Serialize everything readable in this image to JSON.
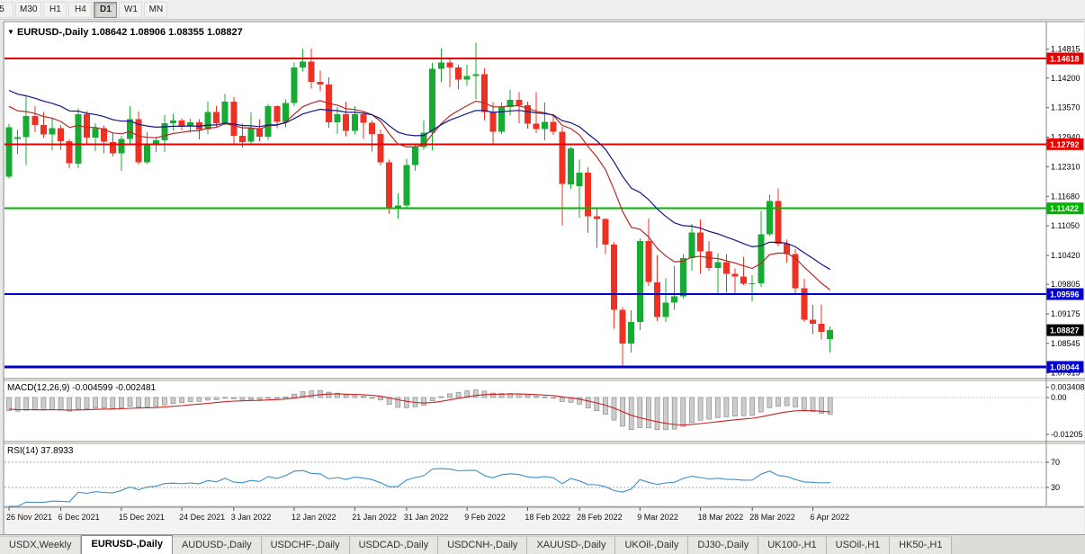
{
  "toolbar": {
    "timeframes": [
      {
        "label": "5",
        "active": false
      },
      {
        "label": "M30",
        "active": false
      },
      {
        "label": "H1",
        "active": false
      },
      {
        "label": "H4",
        "active": false
      },
      {
        "label": "D1",
        "active": true
      },
      {
        "label": "W1",
        "active": false
      },
      {
        "label": "MN",
        "active": false
      }
    ]
  },
  "chart_header": {
    "symbol": "EURUSD-,Daily",
    "ohlc": "1.08642 1.08906 1.08355 1.08827"
  },
  "chart_data": {
    "type": "candlestick",
    "symbol": "EURUSD-",
    "timeframe": "Daily",
    "visible_price_range": {
      "top": 1.154,
      "bottom": 1.0781
    },
    "candles": [
      [
        1.121,
        1.1323,
        1.1206,
        1.1315
      ],
      [
        1.129,
        1.131,
        1.1258,
        1.1294
      ],
      [
        1.1294,
        1.1383,
        1.1235,
        1.1339
      ],
      [
        1.1339,
        1.136,
        1.1305,
        1.132
      ],
      [
        1.132,
        1.1348,
        1.1293,
        1.13
      ],
      [
        1.13,
        1.1334,
        1.1266,
        1.1313
      ],
      [
        1.1313,
        1.132,
        1.1267,
        1.1285
      ],
      [
        1.1285,
        1.129,
        1.1228,
        1.1238
      ],
      [
        1.1238,
        1.1355,
        1.1228,
        1.1343
      ],
      [
        1.1343,
        1.135,
        1.128,
        1.1293
      ],
      [
        1.1293,
        1.1324,
        1.1264,
        1.1313
      ],
      [
        1.1313,
        1.1319,
        1.126,
        1.1284
      ],
      [
        1.1284,
        1.1303,
        1.1253,
        1.126
      ],
      [
        1.126,
        1.1297,
        1.1222,
        1.129
      ],
      [
        1.129,
        1.136,
        1.128,
        1.1332
      ],
      [
        1.1332,
        1.1349,
        1.1236,
        1.124
      ],
      [
        1.124,
        1.1305,
        1.1237,
        1.1278
      ],
      [
        1.1278,
        1.1295,
        1.1262,
        1.1287
      ],
      [
        1.1287,
        1.1342,
        1.1262,
        1.1324
      ],
      [
        1.1324,
        1.1344,
        1.1308,
        1.133
      ],
      [
        1.133,
        1.1334,
        1.1308,
        1.1318
      ],
      [
        1.1318,
        1.1333,
        1.1304,
        1.1326
      ],
      [
        1.1326,
        1.1332,
        1.1289,
        1.131
      ],
      [
        1.131,
        1.137,
        1.13,
        1.1348
      ],
      [
        1.1348,
        1.136,
        1.1315,
        1.1324
      ],
      [
        1.1324,
        1.1386,
        1.132,
        1.137
      ],
      [
        1.137,
        1.1379,
        1.1279,
        1.1297
      ],
      [
        1.1297,
        1.1323,
        1.1272,
        1.1284
      ],
      [
        1.1284,
        1.1347,
        1.128,
        1.1313
      ],
      [
        1.1313,
        1.1332,
        1.1285,
        1.1295
      ],
      [
        1.1295,
        1.1365,
        1.1288,
        1.136
      ],
      [
        1.136,
        1.1362,
        1.1313,
        1.1327
      ],
      [
        1.1327,
        1.1375,
        1.1315,
        1.1367
      ],
      [
        1.1367,
        1.1453,
        1.136,
        1.1443
      ],
      [
        1.1443,
        1.1482,
        1.1434,
        1.1455
      ],
      [
        1.1455,
        1.1483,
        1.1398,
        1.1412
      ],
      [
        1.1412,
        1.1436,
        1.1392,
        1.1406
      ],
      [
        1.1406,
        1.1422,
        1.1314,
        1.1326
      ],
      [
        1.1326,
        1.1358,
        1.1301,
        1.1343
      ],
      [
        1.1343,
        1.137,
        1.1296,
        1.1308
      ],
      [
        1.1308,
        1.136,
        1.13,
        1.1343
      ],
      [
        1.1343,
        1.1349,
        1.129,
        1.1325
      ],
      [
        1.1325,
        1.133,
        1.1263,
        1.1301
      ],
      [
        1.1301,
        1.131,
        1.1234,
        1.124
      ],
      [
        1.124,
        1.1246,
        1.1131,
        1.1145
      ],
      [
        1.1145,
        1.1174,
        1.1121,
        1.1148
      ],
      [
        1.1148,
        1.1248,
        1.1141,
        1.1235
      ],
      [
        1.1235,
        1.128,
        1.1222,
        1.1273
      ],
      [
        1.1273,
        1.133,
        1.1267,
        1.1304
      ],
      [
        1.1304,
        1.1452,
        1.1266,
        1.144
      ],
      [
        1.144,
        1.1483,
        1.1411,
        1.1453
      ],
      [
        1.1453,
        1.1461,
        1.14,
        1.1443
      ],
      [
        1.1443,
        1.1448,
        1.1396,
        1.1417
      ],
      [
        1.1417,
        1.1448,
        1.1403,
        1.1424
      ],
      [
        1.1424,
        1.1495,
        1.1375,
        1.1428
      ],
      [
        1.1428,
        1.1441,
        1.133,
        1.1348
      ],
      [
        1.1348,
        1.1369,
        1.1279,
        1.1306
      ],
      [
        1.1306,
        1.1368,
        1.1301,
        1.1358
      ],
      [
        1.1358,
        1.1395,
        1.134,
        1.1374
      ],
      [
        1.1374,
        1.139,
        1.1324,
        1.1362
      ],
      [
        1.1362,
        1.137,
        1.1312,
        1.1323
      ],
      [
        1.1323,
        1.139,
        1.1303,
        1.1311
      ],
      [
        1.1311,
        1.1368,
        1.1287,
        1.1327
      ],
      [
        1.1327,
        1.1344,
        1.1299,
        1.1306
      ],
      [
        1.1306,
        1.1316,
        1.1106,
        1.1194
      ],
      [
        1.1194,
        1.1274,
        1.1184,
        1.127
      ],
      [
        1.119,
        1.1246,
        1.1122,
        1.1218
      ],
      [
        1.1218,
        1.123,
        1.109,
        1.1125
      ],
      [
        1.1125,
        1.1145,
        1.1058,
        1.112
      ],
      [
        1.112,
        1.1122,
        1.1045,
        1.1065
      ],
      [
        1.1065,
        1.107,
        1.0886,
        1.0926
      ],
      [
        1.0926,
        1.0932,
        1.0806,
        1.0854
      ],
      [
        1.0854,
        1.0925,
        1.0835,
        1.09
      ],
      [
        1.09,
        1.1078,
        1.0883,
        1.1073
      ],
      [
        1.1073,
        1.1121,
        1.0977,
        1.0985
      ],
      [
        1.0985,
        1.1043,
        1.0902,
        1.0911
      ],
      [
        1.0911,
        1.0993,
        1.09,
        1.0941
      ],
      [
        1.0941,
        1.102,
        1.0926,
        1.0955
      ],
      [
        1.0955,
        1.1045,
        1.095,
        1.1036
      ],
      [
        1.1036,
        1.1109,
        1.1009,
        1.1091
      ],
      [
        1.1091,
        1.1119,
        1.1003,
        1.1051
      ],
      [
        1.1051,
        1.1073,
        1.1009,
        1.1015
      ],
      [
        1.1015,
        1.1047,
        1.0961,
        1.1028
      ],
      [
        1.1028,
        1.1045,
        1.0963,
        1.1003
      ],
      [
        1.1003,
        1.1014,
        1.0962,
        1.0997
      ],
      [
        1.0997,
        1.1039,
        1.0979,
        1.0982
      ],
      [
        1.0982,
        1.1,
        1.0944,
        1.0983
      ],
      [
        1.0983,
        1.1137,
        1.0975,
        1.1087
      ],
      [
        1.1087,
        1.1171,
        1.1083,
        1.1158
      ],
      [
        1.1158,
        1.1185,
        1.1061,
        1.1067
      ],
      [
        1.1067,
        1.1076,
        1.1027,
        1.1045
      ],
      [
        1.1045,
        1.1055,
        1.096,
        1.0972
      ],
      [
        1.0972,
        1.0992,
        1.09,
        1.0905
      ],
      [
        1.0905,
        1.0937,
        1.0874,
        1.0896
      ],
      [
        1.0896,
        1.0938,
        1.0863,
        1.0879
      ],
      [
        1.08642,
        1.08906,
        1.08355,
        1.08827
      ]
    ],
    "x_labels": [
      {
        "label": "26 Nov 2021",
        "i": 0
      },
      {
        "label": "6 Dec 2021",
        "i": 6
      },
      {
        "label": "15 Dec 2021",
        "i": 13
      },
      {
        "label": "24 Dec 2021",
        "i": 20
      },
      {
        "label": "3 Jan 2022",
        "i": 26
      },
      {
        "label": "12 Jan 2022",
        "i": 33
      },
      {
        "label": "21 Jan 2022",
        "i": 40
      },
      {
        "label": "31 Jan 2022",
        "i": 46
      },
      {
        "label": "9 Feb 2022",
        "i": 53
      },
      {
        "label": "18 Feb 2022",
        "i": 60
      },
      {
        "label": "28 Feb 2022",
        "i": 66
      },
      {
        "label": "9 Mar 2022",
        "i": 73
      },
      {
        "label": "18 Mar 2022",
        "i": 80
      },
      {
        "label": "28 Mar 2022",
        "i": 86
      },
      {
        "label": "6 Apr 2022",
        "i": 93
      }
    ],
    "y_axis_labels": [
      "1.14815",
      "1.14200",
      "1.13570",
      "1.12940",
      "1.12310",
      "1.11680",
      "1.11050",
      "1.10420",
      "1.09805",
      "1.09175",
      "1.08545",
      "1.07915"
    ],
    "hlines": [
      {
        "price": 1.14618,
        "label": "1.14618",
        "color": "#e60000",
        "width": 2
      },
      {
        "price": 1.12792,
        "label": "1.12792",
        "color": "#e60000",
        "width": 2
      },
      {
        "price": 1.11422,
        "label": "1.11422",
        "color": "#00b400",
        "width": 2
      },
      {
        "price": 1.09596,
        "label": "1.09596",
        "color": "#0000cd",
        "width": 2
      },
      {
        "price": 1.08044,
        "label": "1.08044",
        "color": "#0000cd",
        "width": 3
      }
    ],
    "bid": {
      "price": 1.08827,
      "label": "1.08827"
    },
    "ma": [
      {
        "type": "ema",
        "period": 13,
        "color": "#b52a24"
      },
      {
        "type": "ema",
        "period": 24,
        "color": "#14148c"
      }
    ],
    "macd": {
      "label": "MACD(12,26,9)",
      "values_text": "-0.004599 -0.002481",
      "fast": 12,
      "slow": 26,
      "signal": 9,
      "axis_labels": [
        {
          "text": "0.003408",
          "value": 0.003408
        },
        {
          "text": "0.00",
          "value": 0
        },
        {
          "text": "-0.01205",
          "value": -0.01205
        }
      ]
    },
    "rsi": {
      "label": "RSI(14)",
      "value_text": "37.8933",
      "period": 14,
      "levels": [
        70,
        30
      ]
    }
  },
  "tabs": {
    "items": [
      {
        "label": "USDX,Weekly",
        "active": false
      },
      {
        "label": "EURUSD-,Daily",
        "active": true
      },
      {
        "label": "AUDUSD-,Daily",
        "active": false
      },
      {
        "label": "USDCHF-,Daily",
        "active": false
      },
      {
        "label": "USDCAD-,Daily",
        "active": false
      },
      {
        "label": "USDCNH-,Daily",
        "active": false
      },
      {
        "label": "XAUUSD-,Daily",
        "active": false
      },
      {
        "label": "UKOil-,Daily",
        "active": false
      },
      {
        "label": "DJ30-,Daily",
        "active": false
      },
      {
        "label": "UK100-,H1",
        "active": false
      },
      {
        "label": "USOil-,H1",
        "active": false
      },
      {
        "label": "HK50-,H1",
        "active": false
      }
    ]
  },
  "colors": {
    "bull": "#17ab33",
    "bear": "#ef3124",
    "bid_badge": "#000000",
    "macd_hist": "#cdcdcd",
    "macd_hist_border": "#8a8a8a",
    "macd_signal": "#cc2222",
    "rsi_line": "#3e8ec7",
    "level_dotted": "#a8a8a8"
  }
}
